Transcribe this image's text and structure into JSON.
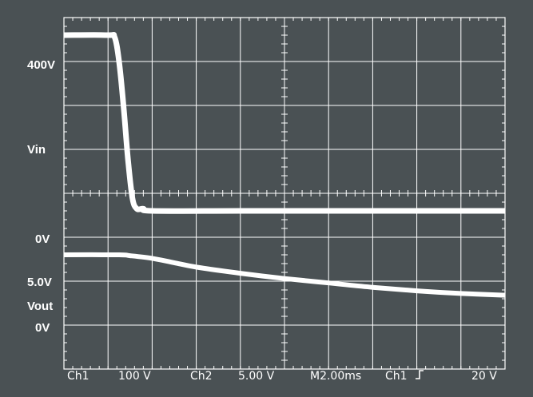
{
  "colors": {
    "background": "#4a5154",
    "grid": "#ffffff",
    "trace": "#ffffff"
  },
  "channel_labels": {
    "vin_top": "400V",
    "vin_name": "Vin",
    "vin_zero": "0V",
    "vout_top": "5.0V",
    "vout_name": "Vout",
    "vout_zero": "0V"
  },
  "status_bar": {
    "ch1_label": "Ch1",
    "ch1_scale": "100 V",
    "ch2_label": "Ch2",
    "ch2_scale": "5.00 V",
    "timebase": "M2.00ms",
    "trigger_channel": "Ch1",
    "trigger_slope_icon": "rising-edge-icon",
    "trigger_level": "20 V"
  },
  "chart_data": {
    "type": "line",
    "title": "",
    "xlabel": "",
    "ylabel": "",
    "x_units": "ms",
    "xlim": [
      0,
      20
    ],
    "ylim_divisions": [
      -4,
      4
    ],
    "grid": true,
    "series": [
      {
        "name": "Vin",
        "scale_per_div": "100 V",
        "zero_division": -0.4,
        "x": [
          0,
          2.0,
          2.3,
          2.5,
          2.7,
          2.9,
          3.1,
          3.3,
          3.6,
          4.0,
          8.0,
          12.0,
          16.0,
          20.0
        ],
        "y": [
          400,
          400,
          395,
          340,
          240,
          120,
          30,
          5,
          5,
          0,
          0,
          0,
          0,
          0
        ]
      },
      {
        "name": "Vout",
        "scale_per_div": "5.00 V",
        "zero_division": -2.4,
        "x": [
          0,
          2.5,
          3.0,
          4.0,
          5.0,
          6.0,
          8.0,
          10.0,
          12.0,
          14.0,
          16.0,
          18.0,
          20.0
        ],
        "y": [
          5.0,
          5.0,
          4.9,
          4.6,
          4.1,
          3.6,
          2.9,
          2.3,
          1.8,
          1.3,
          0.9,
          0.6,
          0.4
        ]
      }
    ]
  }
}
